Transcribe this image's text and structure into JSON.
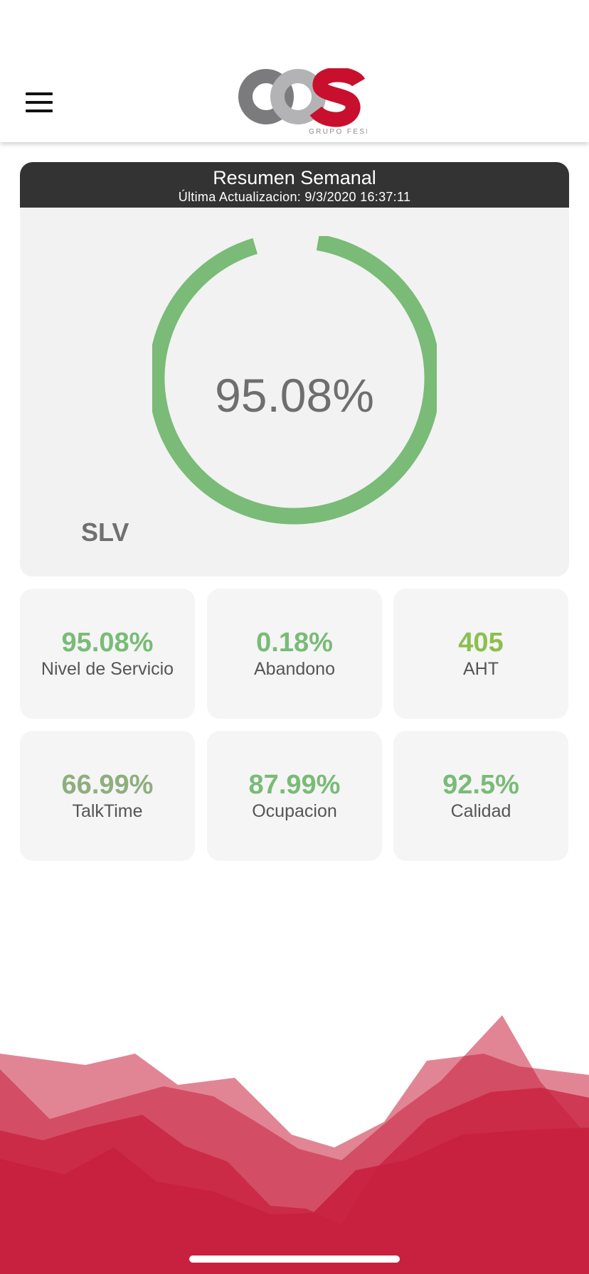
{
  "header": {
    "menu_icon": "hamburger-menu-icon",
    "logo": {
      "text": "OOS",
      "subtitle": "GRUPO FESE",
      "colors": [
        "#7b7b7d",
        "#b3b3b5",
        "#c8102e"
      ]
    }
  },
  "summary": {
    "title": "Resumen Semanal",
    "last_update": "Última Actualizacion: 9/3/2020 16:37:11",
    "gauge": {
      "value": 95.08,
      "display": "95.08%",
      "color": "#79bb77"
    },
    "label": "SLV"
  },
  "metrics": [
    {
      "value": "95.08%",
      "label": "Nivel de Servicio",
      "color": "#79bb77"
    },
    {
      "value": "0.18%",
      "label": "Abandono",
      "color": "#79bb77"
    },
    {
      "value": "405",
      "label": "AHT",
      "color": "#8cbf4e"
    },
    {
      "value": "66.99%",
      "label": "TalkTime",
      "color": "#8fae7e"
    },
    {
      "value": "87.99%",
      "label": "Ocupacion",
      "color": "#79bb77"
    },
    {
      "value": "92.5%",
      "label": "Calidad",
      "color": "#79bb77"
    }
  ],
  "colors": {
    "header_bar": "#333333",
    "card_bg": "#f2f2f2",
    "wave_red": "#c8203e"
  }
}
